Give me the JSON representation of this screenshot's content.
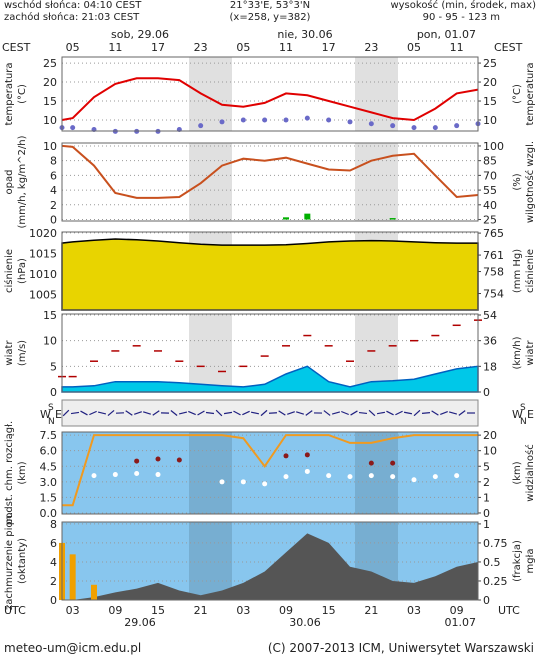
{
  "header": {
    "sunrise": "wschód słońca: 04:10 CEST",
    "sunset": "zachód słońca: 21:03 CEST",
    "coords": "21°33'E, 53°3'N",
    "grid": "(x=258, y=382)",
    "elevation_title": "wysokość (min, środek, max)",
    "elevation": "90 - 95 - 123 m"
  },
  "time": {
    "top_zone": "CEST",
    "bottom_zone": "UTC",
    "top_ticks": [
      {
        "value": 3,
        "label": "05"
      },
      {
        "value": 9,
        "label": "11"
      },
      {
        "value": 15,
        "label": "17"
      },
      {
        "value": 21,
        "label": "23"
      },
      {
        "value": 27,
        "label": "05"
      },
      {
        "value": 33,
        "label": "11"
      },
      {
        "value": 39,
        "label": "17"
      },
      {
        "value": 45,
        "label": "23"
      },
      {
        "value": 51,
        "label": "05"
      },
      {
        "value": 57,
        "label": "11"
      }
    ],
    "bottom_ticks": [
      {
        "value": 3,
        "label": "03"
      },
      {
        "value": 9,
        "label": "09"
      },
      {
        "value": 15,
        "label": "15"
      },
      {
        "value": 21,
        "label": "21"
      },
      {
        "value": 27,
        "label": "03"
      },
      {
        "value": 33,
        "label": "09"
      },
      {
        "value": 39,
        "label": "15"
      },
      {
        "value": 45,
        "label": "21"
      },
      {
        "value": 51,
        "label": "03"
      },
      {
        "value": 57,
        "label": "09"
      }
    ],
    "top_days": [
      "sob, 29.06",
      "nie, 30.06",
      "pon, 01.07"
    ],
    "bottom_days": [
      "29.06",
      "30.06",
      "01.07"
    ]
  },
  "wind_direction": {
    "compass": [
      "W",
      "S",
      "N",
      "E"
    ]
  },
  "footer": {
    "email": "meteo-um@icm.edu.pl",
    "copyright": "(C) 2007-2013 ICM, Uniwersytet Warszawski"
  },
  "chart_data": [
    {
      "type": "line",
      "ylabel": [
        "temperatura",
        "(°C)"
      ],
      "y2label": [
        "(°C)",
        "temperatura"
      ],
      "background": "#ffffff",
      "grid": true,
      "x": [
        1.5,
        3,
        6,
        9,
        12,
        15,
        18,
        21,
        24,
        27,
        30,
        33,
        36,
        39,
        42,
        45,
        48,
        51,
        54,
        57,
        60
      ],
      "xlim": [
        1.5,
        60
      ],
      "ylim": [
        7.1,
        26.6
      ],
      "yticks": [
        10,
        15,
        20,
        25
      ],
      "y2lim": [
        7.1,
        26.6
      ],
      "y2ticks": [
        10,
        15,
        20,
        25
      ],
      "series": [
        {
          "type": "line",
          "color": "#e00000",
          "values": [
            10,
            10.5,
            16,
            19.5,
            21,
            21,
            20.5,
            17,
            14,
            13.5,
            14.5,
            17,
            16.5,
            15,
            13.5,
            12,
            10.5,
            10,
            13,
            17,
            18
          ]
        },
        {
          "type": "dots",
          "color": "#6a6ac8",
          "values": [
            8,
            8,
            7.5,
            7,
            7,
            7,
            7.5,
            8.5,
            9.5,
            10,
            10,
            10,
            10.5,
            10,
            9.5,
            9,
            8.5,
            8,
            8,
            8.5,
            9
          ]
        }
      ]
    },
    {
      "type": "line",
      "ylabel": [
        "opad",
        "(mm/h, kg/m^2/h)"
      ],
      "y2label": [
        "(%)",
        "wilgotność wzgl."
      ],
      "background": "#ffffff",
      "grid": true,
      "x": [
        1.5,
        3,
        6,
        9,
        12,
        15,
        18,
        21,
        24,
        27,
        30,
        33,
        36,
        39,
        42,
        45,
        48,
        51,
        54,
        57,
        60
      ],
      "xlim": [
        1.5,
        60
      ],
      "ylim": [
        -0.2,
        10.4
      ],
      "yticks": [
        0,
        2,
        4,
        6,
        8,
        10
      ],
      "y2lim": [
        23.5,
        103
      ],
      "y2ticks": [
        25,
        40,
        55,
        70,
        85,
        100
      ],
      "series": [
        {
          "type": "bars",
          "color": "#00b000",
          "values": [
            0,
            0,
            0,
            0,
            0,
            0,
            0,
            0,
            0,
            0,
            0,
            0.3,
            0.8,
            0,
            0,
            0,
            0.2,
            0,
            0,
            0,
            0
          ]
        },
        {
          "type": "line",
          "axis": "y2",
          "color": "#c8501e",
          "values": [
            100,
            99,
            80,
            52,
            47,
            47,
            48,
            62,
            80,
            87,
            85,
            88,
            82,
            76,
            75,
            85,
            90,
            92,
            70,
            48,
            50
          ]
        }
      ]
    },
    {
      "type": "line",
      "ylabel": [
        "ciśnienie",
        "(hPa)"
      ],
      "y2label": [
        "(mm Hg)",
        "ciśnienie"
      ],
      "background": "#ffffff",
      "grid": true,
      "x": [
        1.5,
        3,
        6,
        9,
        12,
        15,
        18,
        21,
        24,
        27,
        30,
        33,
        36,
        39,
        42,
        45,
        48,
        51,
        54,
        57,
        60
      ],
      "xlim": [
        1.5,
        60
      ],
      "ylim": [
        1001.2,
        1020.2
      ],
      "yticks": [
        1005,
        1010,
        1015,
        1020
      ],
      "y2lim": [
        751.0,
        765.2
      ],
      "y2ticks": [
        754,
        758,
        761,
        765
      ],
      "series": [
        {
          "type": "area",
          "color": "#e8d400",
          "outline": "#000000",
          "values": [
            1017.5,
            1017.8,
            1018.2,
            1018.5,
            1018.3,
            1018,
            1017.6,
            1017.2,
            1017,
            1017,
            1017,
            1017.1,
            1017.4,
            1017.8,
            1018,
            1018.1,
            1018,
            1017.8,
            1017.6,
            1017.5,
            1017.5
          ]
        }
      ]
    },
    {
      "type": "line",
      "ylabel": [
        "wiatr",
        "(m/s)"
      ],
      "y2label": [
        "(km/h)",
        "wiatr"
      ],
      "background": "#ffffff",
      "grid": true,
      "x": [
        1.5,
        3,
        6,
        9,
        12,
        15,
        18,
        21,
        24,
        27,
        30,
        33,
        36,
        39,
        42,
        45,
        48,
        51,
        54,
        57,
        60
      ],
      "xlim": [
        1.5,
        60
      ],
      "ylim": [
        0,
        15.2
      ],
      "yticks": [
        0,
        5,
        10,
        15
      ],
      "y2lim": [
        0,
        54.7
      ],
      "y2ticks": [
        0,
        18,
        36,
        54
      ],
      "series": [
        {
          "type": "area",
          "color": "#00c8e8",
          "outline": "#0060c0",
          "values": [
            1,
            1,
            1.2,
            2,
            2,
            2,
            1.8,
            1.5,
            1.2,
            1,
            1.5,
            3.5,
            5,
            2,
            1,
            2,
            2.2,
            2.5,
            3.5,
            4.5,
            5
          ]
        },
        {
          "type": "dashes",
          "color": "#b00000",
          "values": [
            3,
            3,
            6,
            8,
            9,
            8,
            6,
            5,
            4,
            5,
            7,
            9,
            11,
            9,
            6,
            8,
            9,
            10,
            11,
            13,
            14
          ]
        }
      ]
    },
    {
      "type": "line",
      "ylabel": [
        "podst. chm. rozciągł.",
        "(km)"
      ],
      "y2label": [
        "(km)",
        "widzialność"
      ],
      "background": "#88c6ee",
      "grid": true,
      "y2scale": "piecewise",
      "x": [
        1.5,
        3,
        6,
        9,
        12,
        15,
        18,
        21,
        24,
        27,
        30,
        33,
        36,
        39,
        42,
        45,
        48,
        51,
        54,
        57,
        60
      ],
      "xlim": [
        1.5,
        60
      ],
      "ylim": [
        -0.1,
        7.8
      ],
      "yticks": [
        {
          "value": 0,
          "label": "0.0"
        },
        {
          "value": 1.5,
          "label": "1.5"
        },
        {
          "value": 3,
          "label": "3.0"
        },
        {
          "value": 4.5,
          "label": "4.5"
        },
        {
          "value": 6,
          "label": "6.0"
        },
        {
          "value": 7.5,
          "label": "7.5"
        }
      ],
      "y2ticks": [
        0,
        1,
        2,
        5,
        10,
        20
      ],
      "series": [
        {
          "type": "line",
          "axis": "y2",
          "color": "#f09a20",
          "values": [
            0.5,
            0.5,
            20,
            20,
            20,
            20,
            20,
            20,
            20,
            18,
            5,
            20,
            20,
            20,
            15,
            15,
            18,
            20,
            20,
            20,
            20
          ]
        },
        {
          "type": "dots",
          "color": "#ffffff",
          "values": [
            null,
            null,
            3.6,
            3.7,
            3.8,
            3.7,
            null,
            null,
            3,
            3,
            2.8,
            3.5,
            4,
            3.6,
            3.5,
            3.6,
            3.5,
            3.2,
            3.5,
            3.6,
            null
          ]
        },
        {
          "type": "dots",
          "color": "#8b1a1a",
          "values": [
            null,
            null,
            null,
            null,
            5,
            5.2,
            5.1,
            null,
            null,
            null,
            null,
            5.5,
            5.6,
            null,
            null,
            4.8,
            4.8,
            null,
            null,
            null,
            null
          ]
        }
      ]
    },
    {
      "type": "line",
      "ylabel": [
        "zachmurzenie pion.",
        "(oktanty)"
      ],
      "y2label": [
        "(frakcja)",
        "mgła"
      ],
      "background": "#88c6ee",
      "grid": true,
      "x": [
        1.5,
        3,
        6,
        9,
        12,
        15,
        18,
        21,
        24,
        27,
        30,
        33,
        36,
        39,
        42,
        45,
        48,
        51,
        54,
        57,
        60
      ],
      "xlim": [
        1.5,
        60
      ],
      "ylim": [
        0,
        8.2
      ],
      "yticks": [
        0,
        2,
        4,
        6,
        8
      ],
      "y2lim": [
        0,
        1.025
      ],
      "y2ticks": [
        0,
        0.25,
        0.5,
        0.75,
        1
      ],
      "series": [
        {
          "type": "area",
          "color": "#555555",
          "values": [
            0,
            0,
            0.3,
            0.8,
            1.2,
            1.8,
            1,
            0.5,
            1,
            1.8,
            3,
            5,
            7,
            6,
            3.5,
            3,
            2,
            1.8,
            2.5,
            3.5,
            4
          ]
        },
        {
          "type": "bars",
          "axis": "y2",
          "color": "#f0a000",
          "values": [
            0.75,
            0.6,
            0.2,
            0,
            0,
            0,
            0,
            0,
            0,
            0,
            0,
            0,
            0,
            0,
            0,
            0,
            0,
            0,
            0,
            0,
            0
          ]
        }
      ]
    }
  ]
}
